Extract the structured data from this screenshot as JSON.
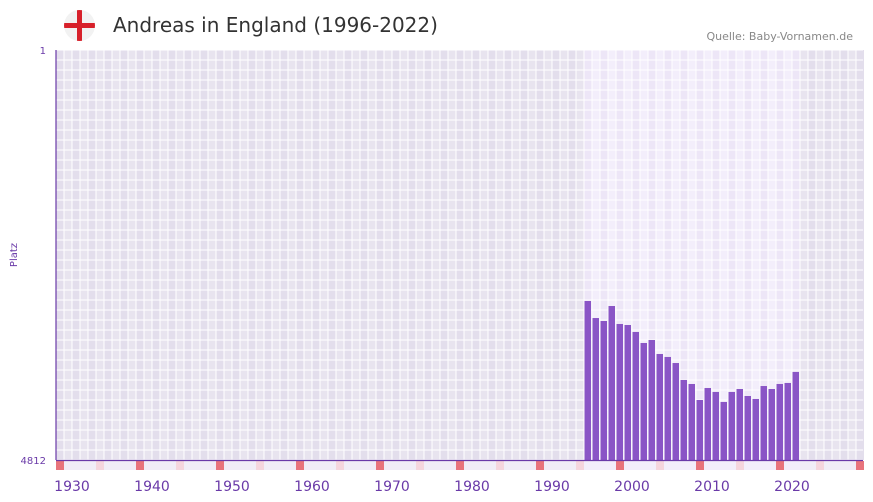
{
  "header": {
    "title": "Andreas in England (1996-2022)",
    "source": "Quelle: Baby-Vornamen.de",
    "flag_icon": "england-flag-icon"
  },
  "chart_data": {
    "type": "bar",
    "title": "Andreas in England (1996-2022)",
    "ylabel": "Platz",
    "xlabel": "",
    "ylim": [
      4812,
      1
    ],
    "y_ticks": [
      "1",
      "4812"
    ],
    "x_range": [
      1930,
      2030
    ],
    "x_ticks": [
      "1930",
      "1940",
      "1950",
      "1960",
      "1970",
      "1980",
      "1990",
      "2000",
      "2010",
      "2020"
    ],
    "highlight_range": [
      1996,
      2022
    ],
    "x": [
      1996,
      1997,
      1998,
      1999,
      2000,
      2001,
      2002,
      2003,
      2004,
      2005,
      2006,
      2007,
      2008,
      2009,
      2010,
      2011,
      2012,
      2013,
      2014,
      2015,
      2016,
      2017,
      2018,
      2019,
      2020,
      2021,
      2022
    ],
    "values": [
      2946,
      3146,
      3181,
      3005,
      3216,
      3228,
      3310,
      3439,
      3404,
      3568,
      3603,
      3674,
      3873,
      3920,
      4108,
      3967,
      4014,
      4131,
      4014,
      3979,
      4061,
      4096,
      3944,
      3979,
      3920,
      3908,
      3779
    ],
    "colors": {
      "bar": "#8a55c6",
      "axis": "#6a3aa8",
      "marker": "#e8747c",
      "marker_light": "#f5d5dd"
    }
  }
}
